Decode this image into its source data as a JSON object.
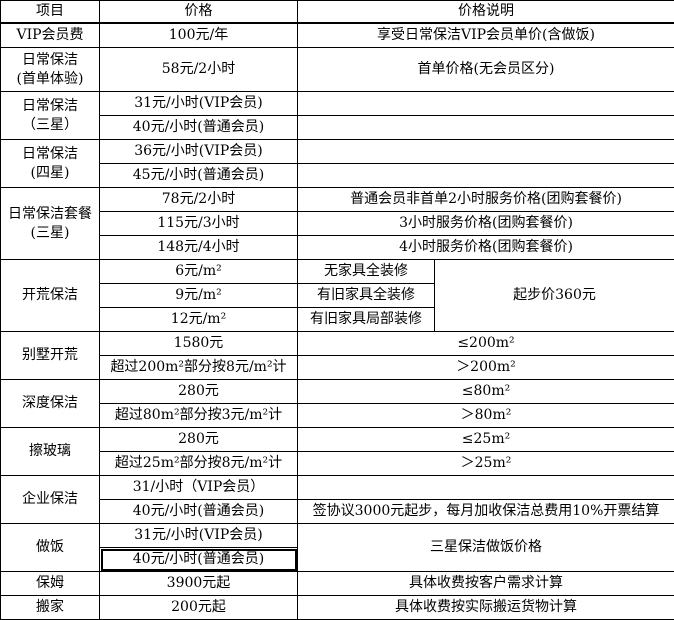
{
  "sheet": {
    "columns": [
      "项目",
      "价格",
      "价格说明"
    ],
    "rows": [
      {
        "cells": [
          {
            "text": "VIP会员费"
          },
          {
            "text": "100元/年"
          },
          {
            "text": "享受日常保洁VIP会员单价(含做饭)",
            "colspan": 2
          }
        ]
      },
      {
        "tall": true,
        "cells": [
          {
            "text": "日常保洁\n(首单体验)"
          },
          {
            "text": "58元/2小时"
          },
          {
            "text": "首单价格(无会员区分)",
            "colspan": 2
          }
        ]
      },
      {
        "cells": [
          {
            "text": "日常保洁\n（三星）",
            "rowspan": 2
          },
          {
            "text": "31元/小时(VIP会员)"
          },
          {
            "text": "",
            "colspan": 2
          }
        ]
      },
      {
        "cells": [
          {
            "text": "40元/小时(普通会员)"
          },
          {
            "text": "",
            "colspan": 2
          }
        ]
      },
      {
        "cells": [
          {
            "text": "日常保洁\n(四星)",
            "rowspan": 2
          },
          {
            "text": "36元/小时(VIP会员)"
          },
          {
            "text": "",
            "colspan": 2
          }
        ]
      },
      {
        "cells": [
          {
            "text": "45元/小时(普通会员)"
          },
          {
            "text": "",
            "colspan": 2
          }
        ]
      },
      {
        "cells": [
          {
            "text": "日常保洁套餐\n(三星)",
            "rowspan": 3
          },
          {
            "text": "78元/2小时"
          },
          {
            "text": "普通会员非首单2小时服务价格(团购套餐价)",
            "colspan": 2
          }
        ]
      },
      {
        "cells": [
          {
            "text": "115元/3小时"
          },
          {
            "text": "3小时服务价格(团购套餐价)",
            "colspan": 2
          }
        ]
      },
      {
        "cells": [
          {
            "text": "148元/4小时"
          },
          {
            "text": "4小时服务价格(团购套餐价)",
            "colspan": 2
          }
        ]
      },
      {
        "cells": [
          {
            "text": "开荒保洁",
            "rowspan": 3
          },
          {
            "text": "6元/m²"
          },
          {
            "text": "无家具全装修"
          },
          {
            "text": "起步价360元",
            "rowspan": 3
          }
        ]
      },
      {
        "cells": [
          {
            "text": "9元/m²"
          },
          {
            "text": "有旧家具全装修"
          }
        ]
      },
      {
        "cells": [
          {
            "text": "12元/m²"
          },
          {
            "text": "有旧家具局部装修"
          }
        ]
      },
      {
        "cells": [
          {
            "text": "别墅开荒",
            "rowspan": 2
          },
          {
            "text": "1580元"
          },
          {
            "text": "≤200m²",
            "colspan": 2
          }
        ]
      },
      {
        "cells": [
          {
            "text": "超过200m²部分按8元/m²计"
          },
          {
            "text": "＞200m²",
            "colspan": 2
          }
        ]
      },
      {
        "cells": [
          {
            "text": "深度保洁",
            "rowspan": 2
          },
          {
            "text": "280元"
          },
          {
            "text": "≤80m²",
            "colspan": 2
          }
        ]
      },
      {
        "cells": [
          {
            "text": "超过80m²部分按3元/m²计"
          },
          {
            "text": "＞80m²",
            "colspan": 2
          }
        ]
      },
      {
        "cells": [
          {
            "text": "擦玻璃",
            "rowspan": 2
          },
          {
            "text": "280元"
          },
          {
            "text": "≤25m²",
            "colspan": 2
          }
        ]
      },
      {
        "cells": [
          {
            "text": "超过25m²部分按8元/m²计"
          },
          {
            "text": "＞25m²",
            "colspan": 2
          }
        ]
      },
      {
        "cells": [
          {
            "text": "企业保洁",
            "rowspan": 2
          },
          {
            "text": "31/小时（VIP会员）"
          },
          {
            "text": "",
            "colspan": 2
          }
        ]
      },
      {
        "cells": [
          {
            "text": "40元/小时(普通会员)"
          },
          {
            "text": "签协议3000元起步，每月加收保洁总费用10%开票结算",
            "colspan": 2
          }
        ]
      },
      {
        "cells": [
          {
            "text": "做饭",
            "rowspan": 2
          },
          {
            "text": "31元/小时(VIP会员)"
          },
          {
            "text": "三星保洁做饭价格",
            "colspan": 2,
            "rowspan": 2
          }
        ]
      },
      {
        "cells": [
          {
            "text": "40元/小时(普通会员)",
            "selected": true
          }
        ]
      },
      {
        "cells": [
          {
            "text": "保姆"
          },
          {
            "text": "3900元起"
          },
          {
            "text": "具体收费按客户需求计算",
            "colspan": 2
          }
        ]
      },
      {
        "cells": [
          {
            "text": "搬家"
          },
          {
            "text": "200元起"
          },
          {
            "text": "具体收费按实际搬运货物计算",
            "colspan": 2
          }
        ]
      }
    ]
  }
}
